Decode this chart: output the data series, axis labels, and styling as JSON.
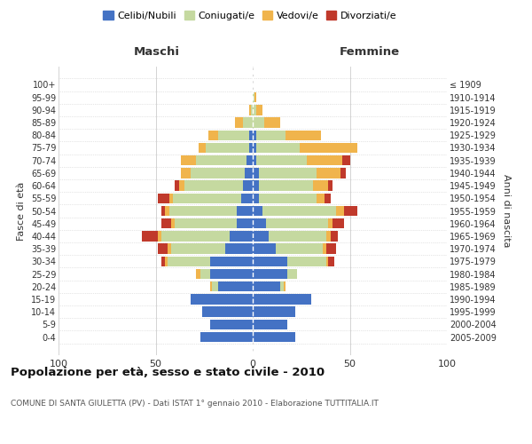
{
  "age_groups": [
    "0-4",
    "5-9",
    "10-14",
    "15-19",
    "20-24",
    "25-29",
    "30-34",
    "35-39",
    "40-44",
    "45-49",
    "50-54",
    "55-59",
    "60-64",
    "65-69",
    "70-74",
    "75-79",
    "80-84",
    "85-89",
    "90-94",
    "95-99",
    "100+"
  ],
  "birth_years": [
    "2005-2009",
    "2000-2004",
    "1995-1999",
    "1990-1994",
    "1985-1989",
    "1980-1984",
    "1975-1979",
    "1970-1974",
    "1965-1969",
    "1960-1964",
    "1955-1959",
    "1950-1954",
    "1945-1949",
    "1940-1944",
    "1935-1939",
    "1930-1934",
    "1925-1929",
    "1920-1924",
    "1915-1919",
    "1910-1914",
    "≤ 1909"
  ],
  "colors": {
    "celibi": "#4472c4",
    "coniugati": "#c5d9a0",
    "vedovi": "#f0b44c",
    "divorziati": "#c0392b"
  },
  "maschi": {
    "celibi": [
      27,
      22,
      26,
      32,
      18,
      22,
      22,
      14,
      12,
      8,
      8,
      6,
      5,
      4,
      3,
      2,
      2,
      0,
      0,
      0,
      0
    ],
    "coniugati": [
      0,
      0,
      0,
      0,
      3,
      5,
      22,
      28,
      35,
      32,
      35,
      35,
      30,
      28,
      26,
      22,
      16,
      5,
      1,
      0,
      0
    ],
    "vedovi": [
      0,
      0,
      0,
      0,
      1,
      2,
      1,
      2,
      2,
      2,
      2,
      2,
      3,
      5,
      8,
      4,
      5,
      4,
      1,
      0,
      0
    ],
    "divorziati": [
      0,
      0,
      0,
      0,
      0,
      0,
      2,
      5,
      8,
      5,
      2,
      6,
      2,
      0,
      0,
      0,
      0,
      0,
      0,
      0,
      0
    ]
  },
  "femmine": {
    "nubili": [
      22,
      18,
      22,
      30,
      14,
      18,
      18,
      12,
      8,
      7,
      5,
      3,
      3,
      3,
      2,
      2,
      2,
      0,
      0,
      0,
      0
    ],
    "coniugate": [
      0,
      0,
      0,
      0,
      2,
      5,
      20,
      24,
      30,
      32,
      38,
      30,
      28,
      30,
      26,
      22,
      15,
      6,
      2,
      1,
      0
    ],
    "vedove": [
      0,
      0,
      0,
      0,
      1,
      0,
      1,
      2,
      2,
      2,
      4,
      4,
      8,
      12,
      18,
      30,
      18,
      8,
      3,
      1,
      0
    ],
    "divorziate": [
      0,
      0,
      0,
      0,
      0,
      0,
      3,
      5,
      4,
      6,
      7,
      3,
      2,
      3,
      4,
      0,
      0,
      0,
      0,
      0,
      0
    ]
  },
  "xlim": [
    -100,
    100
  ],
  "xticks": [
    -100,
    -50,
    0,
    50,
    100
  ],
  "xticklabels": [
    "100",
    "50",
    "0",
    "50",
    "100"
  ],
  "title": "Popolazione per età, sesso e stato civile - 2010",
  "subtitle": "COMUNE DI SANTA GIULETTA (PV) - Dati ISTAT 1° gennaio 2010 - Elaborazione TUTTITALIA.IT",
  "ylabel": "Fasce di età",
  "ylabel_right": "Anni di nascita",
  "legend_labels": [
    "Celibi/Nubili",
    "Coniugati/e",
    "Vedovi/e",
    "Divorziati/e"
  ],
  "header_maschi": "Maschi",
  "header_femmine": "Femmine",
  "bg_color": "#ffffff",
  "grid_color": "#cccccc"
}
